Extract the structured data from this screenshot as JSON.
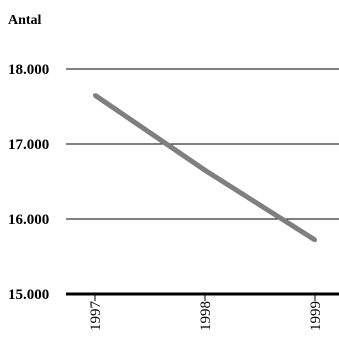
{
  "chart_data": {
    "type": "line",
    "title": "",
    "xlabel": "",
    "ylabel": "Antal",
    "x": [
      "1997",
      "1998",
      "1999"
    ],
    "series": [
      {
        "values": [
          17650,
          16650,
          15720
        ]
      }
    ],
    "ylim": [
      15000,
      18000
    ],
    "yticks": [
      15000,
      16000,
      17000,
      18000
    ],
    "ytick_labels": [
      "15.000",
      "16.000",
      "17.000",
      "18.000"
    ],
    "grid": true,
    "legend": "none",
    "colors": {
      "series": "#7f7f7f",
      "grid": "#000000",
      "baseline": "#000000"
    }
  }
}
